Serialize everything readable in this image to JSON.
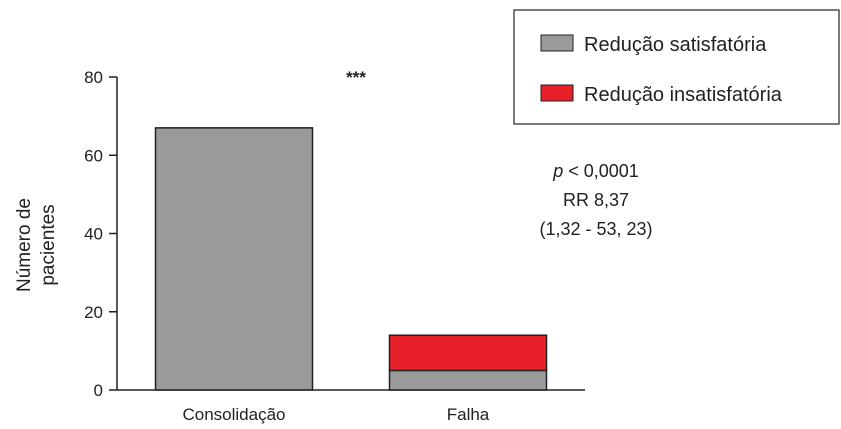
{
  "chart_data": {
    "type": "bar",
    "stacked": true,
    "categories": [
      "Consolidação",
      "Falha"
    ],
    "series": [
      {
        "name": "Redução satisfatória",
        "values": [
          67,
          5
        ],
        "color": "#9a9a9a"
      },
      {
        "name": "Redução insatisfatória",
        "values": [
          0,
          9
        ],
        "color": "#e8202a"
      }
    ],
    "ylabel_lines": [
      "Número de",
      "pacientes"
    ],
    "ylim": [
      0,
      80
    ],
    "yticks": [
      0,
      20,
      40,
      60,
      80
    ],
    "grid": false,
    "legend_position": "top-right",
    "annotations": {
      "significance": "***",
      "p_prefix": "p",
      "p_rest": " < 0,0001",
      "rr": "RR 8,37",
      "ci": "(1,32 - 53, 23)"
    }
  }
}
